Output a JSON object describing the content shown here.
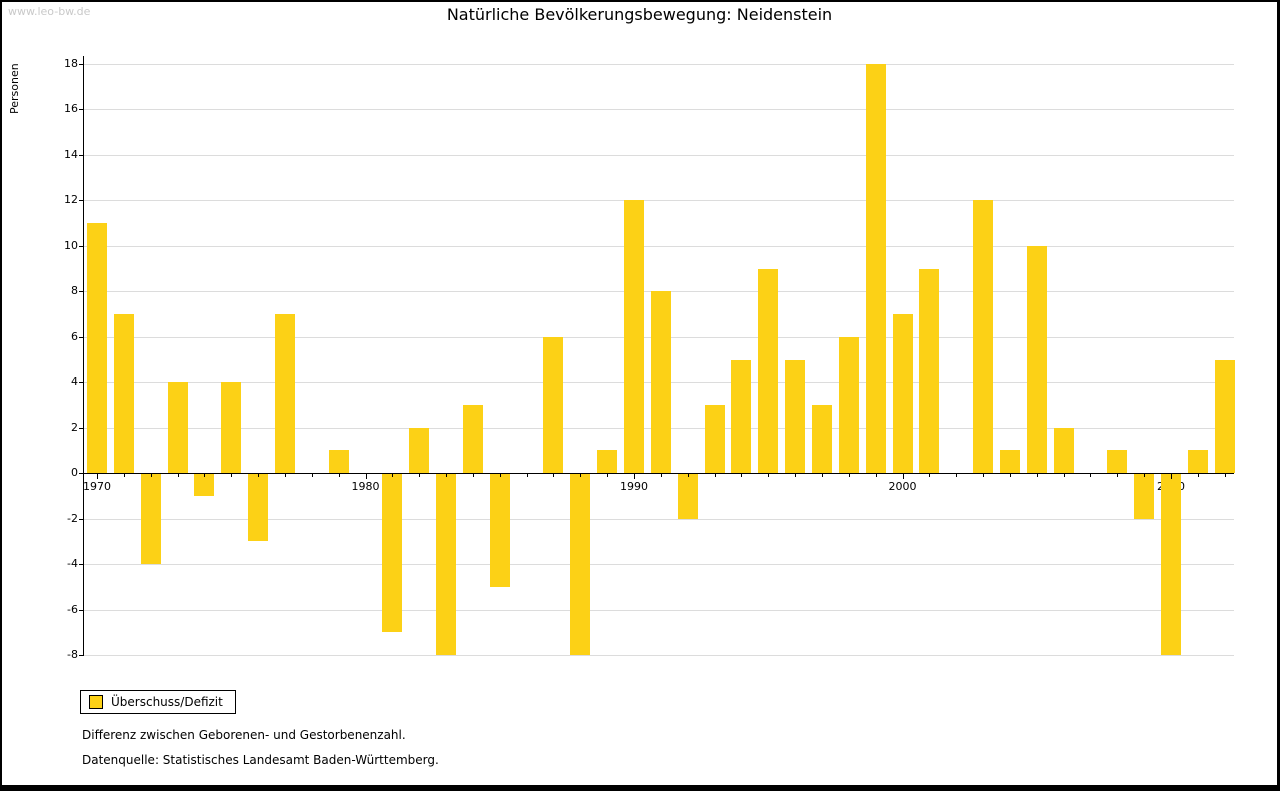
{
  "watermark": "www.leo-bw.de",
  "chart_data": {
    "type": "bar",
    "title": "Natürliche Bevölkerungsbewegung: Neidenstein",
    "ylabel": "Personen",
    "xlabel": "",
    "ylim": [
      -8,
      18
    ],
    "ytick_step": 2,
    "grid": true,
    "bar_color": "#FCD116",
    "categories": [
      1970,
      1971,
      1972,
      1973,
      1974,
      1975,
      1976,
      1977,
      1978,
      1979,
      1980,
      1981,
      1982,
      1983,
      1984,
      1985,
      1986,
      1987,
      1988,
      1989,
      1990,
      1991,
      1992,
      1993,
      1994,
      1995,
      1996,
      1997,
      1998,
      1999,
      2000,
      2001,
      2002,
      2003,
      2004,
      2005,
      2006,
      2007,
      2008,
      2009,
      2010,
      2011,
      2012
    ],
    "values": [
      11,
      7,
      -4,
      4,
      -1,
      4,
      -3,
      7,
      0,
      1,
      0,
      -7,
      2,
      -8,
      3,
      -5,
      0,
      6,
      -8,
      1,
      12,
      8,
      -2,
      3,
      5,
      9,
      5,
      3,
      6,
      18,
      7,
      9,
      0,
      12,
      1,
      10,
      2,
      0,
      1,
      -2,
      -8,
      1,
      5
    ],
    "xticks": [
      1970,
      1980,
      1990,
      2000,
      2010
    ],
    "legend": {
      "label": "Überschuss/Defizit",
      "position": "bottom-left"
    }
  },
  "footnotes": [
    "Differenz zwischen Geborenen- und Gestorbenenzahl.",
    "Datenquelle: Statistisches Landesamt Baden-Württemberg."
  ]
}
